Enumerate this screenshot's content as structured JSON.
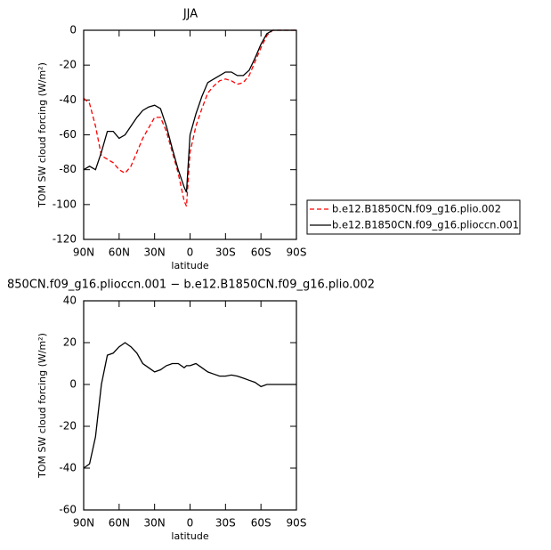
{
  "chart_data": [
    {
      "type": "line",
      "title": "JJA",
      "x_label": "latitude",
      "y_label": "TOM SW cloud forcing (W/m²)",
      "x": [
        90,
        85,
        80,
        75,
        70,
        65,
        60,
        55,
        50,
        45,
        40,
        35,
        30,
        25,
        20,
        15,
        10,
        5,
        3,
        0,
        -5,
        -10,
        -15,
        -20,
        -25,
        -30,
        -35,
        -40,
        -45,
        -50,
        -55,
        -60,
        -65,
        -70,
        -75,
        -80,
        -85,
        -90
      ],
      "series": [
        {
          "name": "b.e12.B1850CN.f09_g16.plio.002",
          "color": "#ff0000",
          "style": "dashed",
          "values": [
            -39,
            -42,
            -55,
            -72,
            -74,
            -76,
            -80,
            -82,
            -78,
            -70,
            -62,
            -56,
            -50,
            -50,
            -58,
            -70,
            -82,
            -98,
            -101,
            -70,
            -55,
            -45,
            -36,
            -32,
            -29,
            -28,
            -29,
            -31,
            -30,
            -26,
            -18,
            -10,
            -3,
            0,
            0,
            0,
            0,
            0
          ]
        },
        {
          "name": "b.e12.B1850CN.f09_g16.plioccn.001",
          "color": "#000000",
          "style": "solid",
          "values": [
            -80,
            -78,
            -80,
            -70,
            -58,
            -58,
            -62,
            -60,
            -55,
            -50,
            -46,
            -44,
            -43,
            -45,
            -55,
            -68,
            -80,
            -90,
            -93,
            -60,
            -48,
            -38,
            -30,
            -28,
            -26,
            -24,
            -24,
            -26,
            -26,
            -23,
            -16,
            -8,
            -2,
            0,
            0,
            0,
            0,
            0
          ]
        }
      ],
      "xlim": [
        90,
        -90
      ],
      "xticks": [
        {
          "value": 90,
          "label": "90N"
        },
        {
          "value": 60,
          "label": "60N"
        },
        {
          "value": 30,
          "label": "30N"
        },
        0,
        {
          "value": -30,
          "label": "30S"
        },
        {
          "value": -60,
          "label": "60S"
        },
        {
          "value": -90,
          "label": "90S"
        }
      ],
      "ylim": [
        -120,
        0
      ],
      "yticks": [
        -120,
        -100,
        -80,
        -60,
        -40,
        -20,
        0
      ],
      "legend": "right"
    },
    {
      "type": "line",
      "title": "850CN.f09_g16.plioccn.001 − b.e12.B1850CN.f09_g16.plio.002",
      "x_label": "latitude",
      "y_label": "TOM SW cloud forcing (W/m²)",
      "x": [
        90,
        85,
        80,
        75,
        70,
        65,
        60,
        55,
        50,
        45,
        40,
        35,
        30,
        25,
        20,
        15,
        10,
        5,
        3,
        0,
        -5,
        -10,
        -15,
        -20,
        -25,
        -30,
        -35,
        -40,
        -45,
        -50,
        -55,
        -60,
        -65,
        -70,
        -75,
        -80,
        -85,
        -90
      ],
      "series": [
        {
          "color": "#000000",
          "style": "solid",
          "values": [
            -40,
            -38,
            -25,
            0,
            14,
            15,
            18,
            20,
            18,
            15,
            10,
            8,
            6,
            7,
            9,
            10,
            10,
            8,
            9,
            9,
            10,
            8,
            6,
            5,
            4,
            4,
            4.5,
            4,
            3,
            2,
            1,
            -1,
            0,
            0,
            0,
            0,
            0,
            0
          ]
        }
      ],
      "xlim": [
        90,
        -90
      ],
      "xticks": [
        {
          "value": 90,
          "label": "90N"
        },
        {
          "value": 60,
          "label": "60N"
        },
        {
          "value": 30,
          "label": "30N"
        },
        0,
        {
          "value": -30,
          "label": "30S"
        },
        {
          "value": -60,
          "label": "60S"
        },
        {
          "value": -90,
          "label": "90S"
        }
      ],
      "ylim": [
        -60,
        40
      ],
      "yticks": [
        -60,
        -40,
        -20,
        0,
        20,
        40
      ]
    }
  ]
}
